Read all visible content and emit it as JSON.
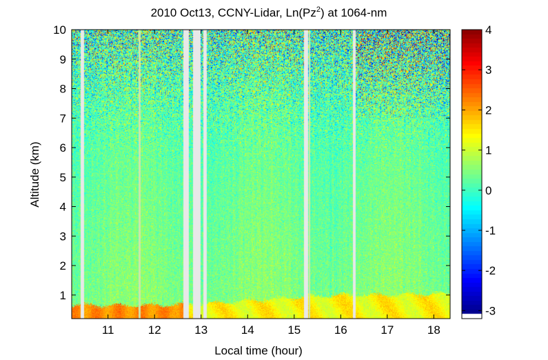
{
  "chart_data": {
    "type": "heatmap",
    "title_prefix": "2010 Oct13, CCNY-Lidar, Ln(Pz",
    "title_sup": "2",
    "title_suffix": ") at 1064-nm",
    "xlabel": "Local time (hour)",
    "ylabel": "Altitude (km)",
    "xlim": [
      10.22,
      18.35
    ],
    "ylim": [
      0.2,
      10
    ],
    "xticks": [
      "11",
      "12",
      "13",
      "14",
      "15",
      "16",
      "17",
      "18"
    ],
    "yticks": [
      "1",
      "2",
      "3",
      "4",
      "5",
      "6",
      "7",
      "8",
      "9",
      "10"
    ],
    "colorbar": {
      "range": [
        -3.2,
        4
      ],
      "ticks": [
        "-3",
        "-2",
        "-1",
        "0",
        "1",
        "2",
        "3",
        "4"
      ],
      "colormap": "jet"
    },
    "data_gaps_hours": [
      [
        10.42,
        10.47
      ],
      [
        12.63,
        12.72
      ],
      [
        12.83,
        12.97
      ],
      [
        13.05,
        13.1
      ],
      [
        15.22,
        15.27
      ],
      [
        16.27,
        16.3
      ]
    ],
    "thin_gaps_hours": [
      11.67,
      15.32
    ],
    "background_value_range": [
      0.2,
      0.6
    ],
    "boundary_layer": {
      "top_km": [
        {
          "t": 10.22,
          "h": 0.65
        },
        {
          "t": 12.0,
          "h": 0.65
        },
        {
          "t": 13.1,
          "h": 0.7
        },
        {
          "t": 14.0,
          "h": 0.8
        },
        {
          "t": 15.0,
          "h": 0.92
        },
        {
          "t": 16.0,
          "h": 1.0
        },
        {
          "t": 17.0,
          "h": 1.0
        },
        {
          "t": 18.35,
          "h": 1.05
        }
      ],
      "value_range": [
        1.0,
        1.6
      ],
      "early_segment_end_hour": 12.63,
      "early_segment_value_range": [
        1.8,
        2.3
      ]
    },
    "noise_onset_km": 5.0
  }
}
